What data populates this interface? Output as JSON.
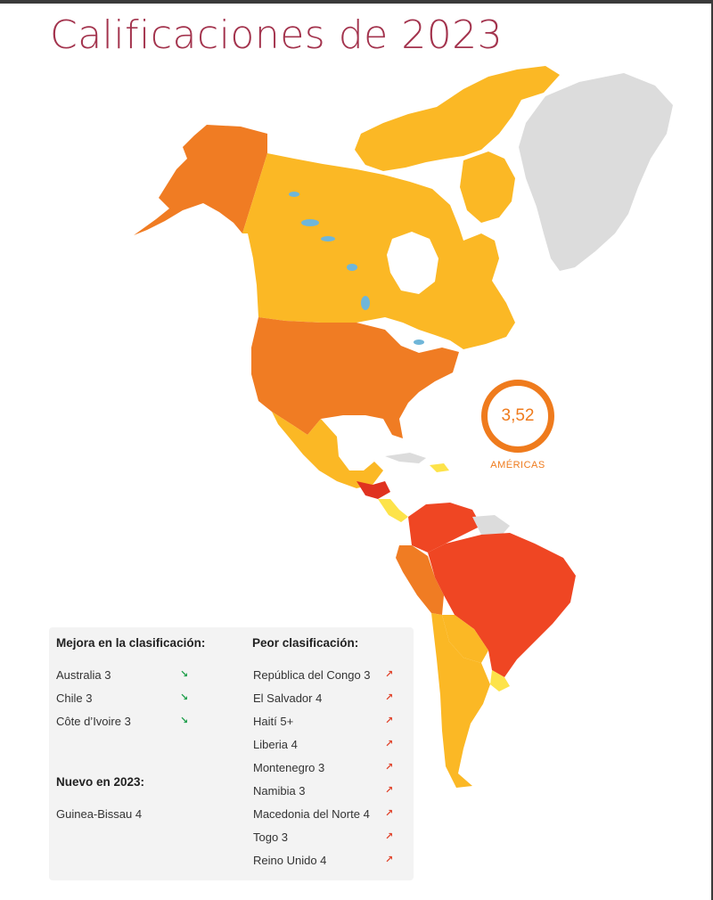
{
  "title": "Calificaciones de 2023",
  "badge": {
    "value": "3,52",
    "label": "AMÉRICAS"
  },
  "colors": {
    "rating_1": "#fde34a",
    "rating_2": "#fbb825",
    "rating_3": "#f07c23",
    "rating_4": "#ef4623",
    "rating_5": "#e0321f",
    "no_data": "#dcdcdc",
    "water": "#6fb6d9",
    "title": "#a3334d",
    "badge": "#ef7b1d"
  },
  "improved": {
    "heading": "Mejora en la clasificación:",
    "items": [
      {
        "label": "Australia 3",
        "icon": "arrow-down-right-icon"
      },
      {
        "label": "Chile 3",
        "icon": "arrow-down-right-icon"
      },
      {
        "label": "Côte d’Ivoire 3",
        "icon": "arrow-down-right-icon"
      }
    ]
  },
  "new_in": {
    "heading": "Nuevo en 2023:",
    "items": [
      {
        "label": "Guinea-Bissau 4"
      }
    ]
  },
  "worse": {
    "heading": "Peor clasificación:",
    "items": [
      {
        "label": "República del Congo 3",
        "icon": "arrow-up-right-icon"
      },
      {
        "label": "El Salvador 4",
        "icon": "arrow-up-right-icon"
      },
      {
        "label": "Haití 5+",
        "icon": "arrow-up-right-icon"
      },
      {
        "label": "Liberia 4",
        "icon": "arrow-up-right-icon"
      },
      {
        "label": "Montenegro 3",
        "icon": "arrow-up-right-icon"
      },
      {
        "label": "Namibia 3",
        "icon": "arrow-up-right-icon"
      },
      {
        "label": "Macedonia del Norte 4",
        "icon": "arrow-up-right-icon"
      },
      {
        "label": "Togo 3",
        "icon": "arrow-up-right-icon"
      },
      {
        "label": "Reino Unido 4",
        "icon": "arrow-up-right-icon"
      }
    ]
  }
}
